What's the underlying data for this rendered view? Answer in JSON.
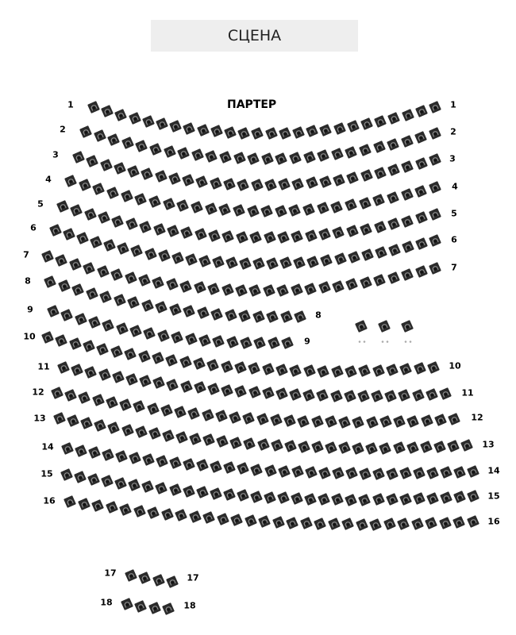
{
  "stage": {
    "label": "СЦЕНА"
  },
  "section": {
    "title": "ПАРТЕР"
  },
  "colors": {
    "seat": "#2b2b2b",
    "seat_mark": "#9a9a9a",
    "stage_bg": "#eeeeee"
  },
  "rows": [
    {
      "left_label": "1",
      "right_label": "1",
      "seats": 26
    },
    {
      "left_label": "2",
      "right_label": "2",
      "seats": 26
    },
    {
      "left_label": "3",
      "right_label": "3",
      "seats": 27
    },
    {
      "left_label": "4",
      "right_label": "4",
      "seats": 27
    },
    {
      "left_label": "5",
      "right_label": "5",
      "seats": 28
    },
    {
      "left_label": "6",
      "right_label": "6",
      "seats": 29
    },
    {
      "left_label": "7",
      "right_label": "7",
      "seats": 29
    },
    {
      "left_label": "8",
      "right_label": "8",
      "seats": 19
    },
    {
      "left_label": "9",
      "right_label": "9",
      "seats": 18
    },
    {
      "left_label": "10",
      "right_label": "10",
      "seats": 29
    },
    {
      "left_label": "11",
      "right_label": "11",
      "seats": 29
    },
    {
      "left_label": "12",
      "right_label": "12",
      "seats": 30
    },
    {
      "left_label": "13",
      "right_label": "13",
      "seats": 31
    },
    {
      "left_label": "14",
      "right_label": "14",
      "seats": 31
    },
    {
      "left_label": "15",
      "right_label": "15",
      "seats": 31
    },
    {
      "left_label": "16",
      "right_label": "16",
      "seats": 30
    },
    {
      "left_label": "17",
      "right_label": "17",
      "seats": 4
    },
    {
      "left_label": "18",
      "right_label": "18",
      "seats": 4
    }
  ],
  "special_seats": {
    "count": 3,
    "icon": "seat-with-extras-icon"
  }
}
